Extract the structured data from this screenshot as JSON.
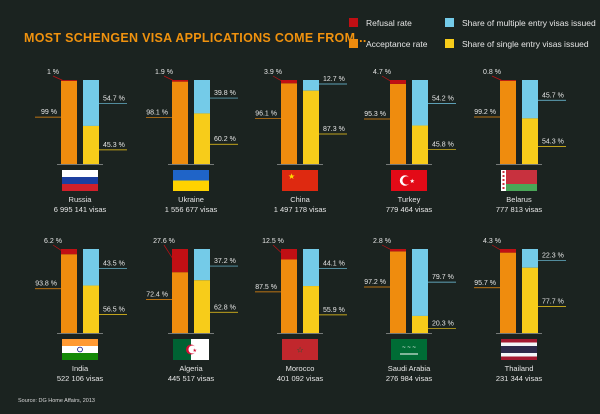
{
  "title": "MOST SCHENGEN VISA APPLICATIONS COME FROM...",
  "source": "Source: DG Home Affairs, 2013",
  "colors": {
    "refusal": "#c00f14",
    "acceptance": "#ef8c0e",
    "multiple": "#74cbe8",
    "single": "#f7cc1a",
    "background": "#1b2320"
  },
  "chart_data": {
    "type": "bar",
    "legend": [
      {
        "key": "refusal",
        "label": "Refusal rate"
      },
      {
        "key": "acceptance",
        "label": "Acceptance rate"
      },
      {
        "key": "multiple",
        "label": "Share of multiple entry visas issued"
      },
      {
        "key": "single",
        "label": "Share of single entry visas issued"
      }
    ],
    "countries": [
      {
        "name": "Russia",
        "visas": "6 995 141 visas",
        "flag": "russia",
        "refusal": 1.0,
        "acceptance": 99.0,
        "multiple": 54.7,
        "single": 45.3,
        "refusal_label": "1 %",
        "acceptance_label": "99 %",
        "multiple_label": "54.7 %",
        "single_label": "45.3 %"
      },
      {
        "name": "Ukraine",
        "visas": "1 556 677 visas",
        "flag": "ukraine",
        "refusal": 1.9,
        "acceptance": 98.1,
        "multiple": 39.8,
        "single": 60.2,
        "refusal_label": "1.9 %",
        "acceptance_label": "98.1 %",
        "multiple_label": "39.8 %",
        "single_label": "60.2 %"
      },
      {
        "name": "China",
        "visas": "1 497 178 visas",
        "flag": "china",
        "refusal": 3.9,
        "acceptance": 96.1,
        "multiple": 12.7,
        "single": 87.3,
        "refusal_label": "3.9 %",
        "acceptance_label": "96.1 %",
        "multiple_label": "12.7 %",
        "single_label": "87.3 %"
      },
      {
        "name": "Turkey",
        "visas": "779 464 visas",
        "flag": "turkey",
        "refusal": 4.7,
        "acceptance": 95.3,
        "multiple": 54.2,
        "single": 45.8,
        "refusal_label": "4.7 %",
        "acceptance_label": "95.3 %",
        "multiple_label": "54.2 %",
        "single_label": "45.8 %"
      },
      {
        "name": "Belarus",
        "visas": "777 813 visas",
        "flag": "belarus",
        "refusal": 0.8,
        "acceptance": 99.2,
        "multiple": 45.7,
        "single": 54.3,
        "refusal_label": "0.8 %",
        "acceptance_label": "99.2 %",
        "multiple_label": "45.7 %",
        "single_label": "54.3 %"
      },
      {
        "name": "India",
        "visas": "522 106 visas",
        "flag": "india",
        "refusal": 6.2,
        "acceptance": 93.8,
        "multiple": 43.5,
        "single": 56.5,
        "refusal_label": "6.2 %",
        "acceptance_label": "93.8 %",
        "multiple_label": "43.5 %",
        "single_label": "56.5 %"
      },
      {
        "name": "Algeria",
        "visas": "445 517 visas",
        "flag": "algeria",
        "refusal": 27.6,
        "acceptance": 72.4,
        "multiple": 37.2,
        "single": 62.8,
        "refusal_label": "27.6 %",
        "acceptance_label": "72.4 %",
        "multiple_label": "37.2 %",
        "single_label": "62.8 %"
      },
      {
        "name": "Morocco",
        "visas": "401 092 visas",
        "flag": "morocco",
        "refusal": 12.5,
        "acceptance": 87.5,
        "multiple": 44.1,
        "single": 55.9,
        "refusal_label": "12.5 %",
        "acceptance_label": "87.5 %",
        "multiple_label": "44.1 %",
        "single_label": "55.9 %"
      },
      {
        "name": "Saudi Arabia",
        "visas": "276 984 visas",
        "flag": "saudi-arabia",
        "refusal": 2.8,
        "acceptance": 97.2,
        "multiple": 79.7,
        "single": 20.3,
        "refusal_label": "2.8 %",
        "acceptance_label": "97.2 %",
        "multiple_label": "79.7 %",
        "single_label": "20.3 %"
      },
      {
        "name": "Thailand",
        "visas": "231 344 visas",
        "flag": "thailand",
        "refusal": 4.3,
        "acceptance": 95.7,
        "multiple": 22.3,
        "single": 77.7,
        "refusal_label": "4.3 %",
        "acceptance_label": "95.7 %",
        "multiple_label": "22.3 %",
        "single_label": "77.7 %"
      }
    ]
  }
}
